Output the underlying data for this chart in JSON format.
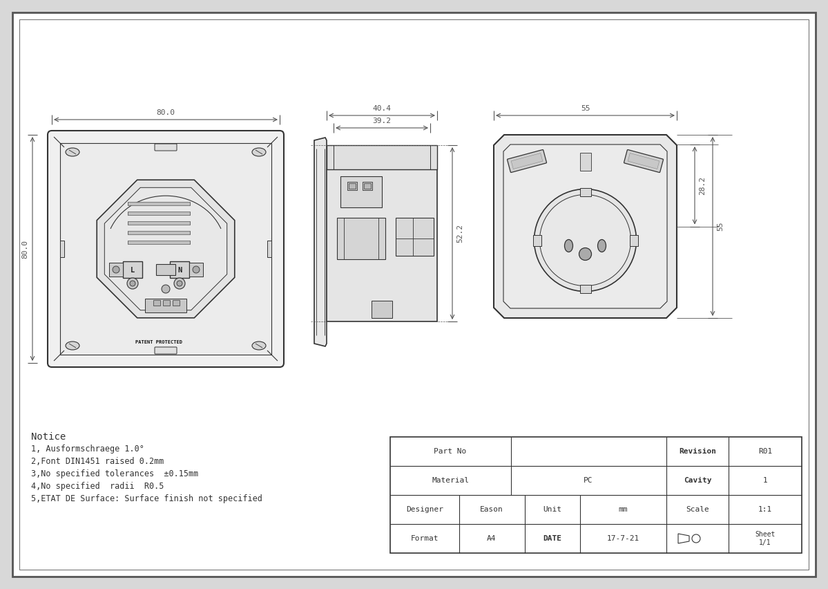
{
  "bg_color": "#e8e8e8",
  "line_color": "#333333",
  "dim_color": "#555555",
  "fill_light": "#f5f5f5",
  "fill_mid": "#e0e0e0",
  "fill_dark": "#cccccc",
  "notice_lines": [
    "Notice",
    "1, Ausformschraege 1.0°",
    "2,Font DIN1451 raised 0.2mm",
    "3,No specified tolerances  ±0.15mm",
    "4,No specified  radii  R0.5",
    "5,ETAT DE Surface: Surface finish not specified"
  ],
  "dim_80_top": "80.0",
  "dim_80_left": "80.0",
  "dim_40_4": "40.4",
  "dim_39_2": "39.2",
  "dim_52_2": "52.2",
  "dim_55_top": "55",
  "dim_55_right": "55",
  "dim_28_2": "28.2"
}
